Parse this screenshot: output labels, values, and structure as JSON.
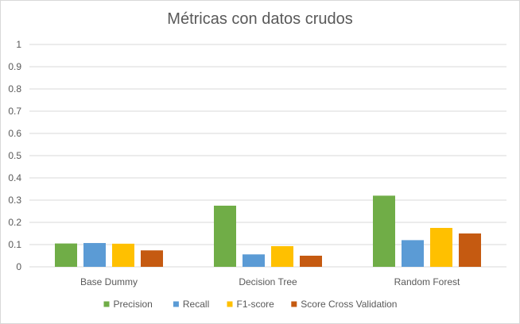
{
  "chart_data": {
    "type": "bar",
    "title": "Métricas con datos crudos",
    "xlabel": "",
    "ylabel": "",
    "categories": [
      "Base Dummy",
      "Decision Tree",
      "Random Forest"
    ],
    "series": [
      {
        "name": "Precision",
        "color": "#70ad47",
        "values": [
          0.105,
          0.275,
          0.32
        ]
      },
      {
        "name": "Recall",
        "color": "#5b9bd5",
        "values": [
          0.107,
          0.056,
          0.12
        ]
      },
      {
        "name": "F1-score",
        "color": "#ffc000",
        "values": [
          0.104,
          0.093,
          0.175
        ]
      },
      {
        "name": "Score Cross Validation",
        "color": "#c55a11",
        "values": [
          0.074,
          0.05,
          0.15
        ]
      }
    ],
    "ylim": [
      0,
      1
    ],
    "yticks": [
      "0",
      "0.1",
      "0.2",
      "0.3",
      "0.4",
      "0.5",
      "0.6",
      "0.7",
      "0.8",
      "0.9",
      "1"
    ],
    "grid": true,
    "legend": "bottom"
  }
}
